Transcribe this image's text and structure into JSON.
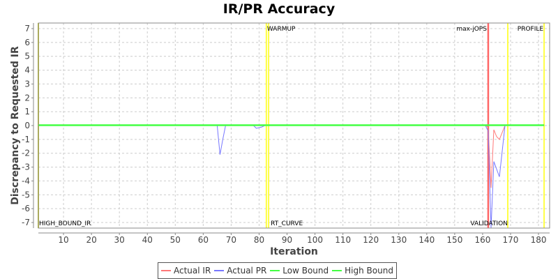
{
  "chart_data": {
    "type": "line",
    "title": "IR/PR Accuracy",
    "xlabel": "Iteration",
    "ylabel": "Discrepancy to Requested IR",
    "xlim": [
      1,
      182
    ],
    "ylim": [
      -7.4,
      7.4
    ],
    "x_ticks": [
      10,
      20,
      30,
      40,
      50,
      60,
      70,
      80,
      90,
      100,
      110,
      120,
      130,
      140,
      150,
      160,
      170,
      180
    ],
    "y_ticks": [
      7,
      6,
      5,
      4,
      3,
      2,
      1,
      0,
      -1,
      -2,
      -3,
      -4,
      -5,
      -6,
      -7
    ],
    "grid": true,
    "legend_position": "bottom",
    "series": [
      {
        "name": "Actual IR",
        "color": "#ff7777",
        "points": [
          [
            1,
            0
          ],
          [
            65,
            0
          ],
          [
            66,
            0.05
          ],
          [
            67,
            0
          ],
          [
            80,
            0
          ],
          [
            83,
            0
          ],
          [
            160,
            0
          ],
          [
            161,
            0
          ],
          [
            162,
            -0.1
          ],
          [
            163,
            -4.5
          ],
          [
            164,
            -0.3
          ],
          [
            165,
            -0.8
          ],
          [
            166,
            -1.0
          ],
          [
            168,
            0
          ],
          [
            182,
            0
          ]
        ]
      },
      {
        "name": "Actual PR",
        "color": "#7777ff",
        "points": [
          [
            1,
            0
          ],
          [
            65,
            0
          ],
          [
            66,
            -2.1
          ],
          [
            67,
            -1.0
          ],
          [
            68,
            0
          ],
          [
            78,
            0
          ],
          [
            79,
            -0.2
          ],
          [
            81,
            -0.1
          ],
          [
            82,
            0
          ],
          [
            160,
            0
          ],
          [
            161,
            0
          ],
          [
            162,
            -0.4
          ],
          [
            163,
            -7.5
          ],
          [
            164,
            -2.6
          ],
          [
            166,
            -3.7
          ],
          [
            168,
            0
          ],
          [
            182,
            0
          ]
        ]
      },
      {
        "name": "Low Bound",
        "color": "#44ff44",
        "points": [
          [
            1,
            0
          ],
          [
            161,
            0
          ],
          [
            168,
            0
          ],
          [
            182,
            0
          ]
        ]
      },
      {
        "name": "High Bound",
        "color": "#44ff44",
        "points": [
          [
            1,
            0.05
          ],
          [
            161,
            0.05
          ],
          [
            168,
            0.05
          ],
          [
            182,
            0.05
          ]
        ]
      }
    ],
    "markers": [
      {
        "label": "HIGH_BOUND_IR",
        "x": 1,
        "color": "#cccc33",
        "label_pos": "bottom"
      },
      {
        "label": "WARMUP",
        "x": 82.6,
        "color": "#ffff44",
        "label_pos": "top"
      },
      {
        "label": "RT_CURVE",
        "x": 83.4,
        "color": "#ffff44",
        "label_pos": "bottom"
      },
      {
        "label": "max-jOPS",
        "x": 162,
        "color": "#ff6666",
        "label_pos": "top"
      },
      {
        "label": "VALIDATION",
        "x": 169,
        "color": "#ffff44",
        "label_pos": "bottom"
      },
      {
        "label": "PROFILE",
        "x": 182,
        "color": "#ffff44",
        "label_pos": "top"
      }
    ]
  },
  "legend": [
    {
      "label": "Actual IR",
      "color": "#ff7777"
    },
    {
      "label": "Actual PR",
      "color": "#7777ff"
    },
    {
      "label": "Low Bound",
      "color": "#44ff44"
    },
    {
      "label": "High Bound",
      "color": "#44ff44"
    }
  ]
}
